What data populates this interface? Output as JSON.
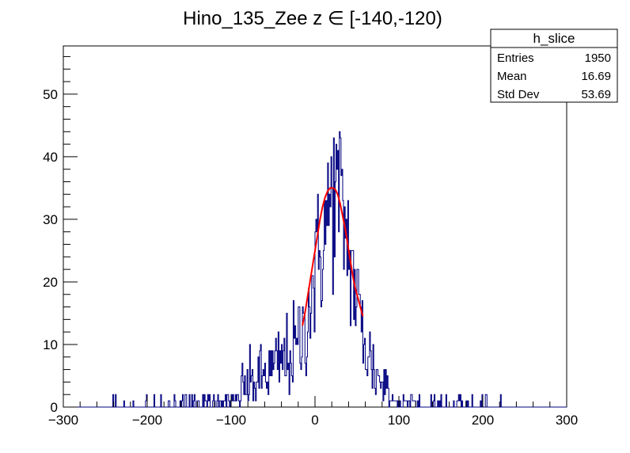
{
  "chart_data": {
    "type": "histogram",
    "title": "Hino_135_Zee z  ∈ [-140,-120)",
    "xlim": [
      -300,
      300
    ],
    "ylim": [
      0,
      57.7
    ],
    "x_ticks": [
      -300,
      -200,
      -100,
      0,
      100,
      200,
      300
    ],
    "x_tick_labels": [
      "−300",
      "−200",
      "−100",
      "0",
      "100",
      "200",
      "300"
    ],
    "y_ticks": [
      0,
      10,
      20,
      30,
      40,
      50
    ],
    "y_tick_labels": [
      "0",
      "10",
      "20",
      "30",
      "40",
      "50"
    ],
    "histogram_color": "#000080",
    "fit_color": "#ff0000",
    "bins": {
      "low": -300,
      "high": 300,
      "count": 600
    },
    "profile": {
      "comment": "approximate envelope of bin contents",
      "points": [
        [
          -300,
          0
        ],
        [
          -200,
          0.4
        ],
        [
          -150,
          1.2
        ],
        [
          -120,
          1.8
        ],
        [
          -100,
          2.6
        ],
        [
          -80,
          3.5
        ],
        [
          -60,
          5
        ],
        [
          -40,
          7
        ],
        [
          -25,
          9
        ],
        [
          -15,
          11
        ],
        [
          -5,
          18
        ],
        [
          5,
          24
        ],
        [
          15,
          30
        ],
        [
          22,
          35
        ],
        [
          30,
          33
        ],
        [
          40,
          26
        ],
        [
          50,
          17
        ],
        [
          60,
          10
        ],
        [
          70,
          6
        ],
        [
          80,
          4
        ],
        [
          95,
          2.5
        ],
        [
          120,
          1.2
        ],
        [
          150,
          0.6
        ],
        [
          200,
          0.2
        ],
        [
          300,
          0
        ]
      ]
    },
    "fit": {
      "name": "",
      "x": [
        -15,
        -12,
        -9,
        -6,
        -3,
        0,
        3,
        6,
        9,
        12,
        15,
        18,
        21,
        24,
        27,
        30,
        33,
        36,
        39,
        42,
        45,
        48,
        51,
        54,
        57
      ],
      "y": [
        13,
        15,
        17.5,
        20,
        22.5,
        25,
        27.5,
        30,
        32,
        33.5,
        34.5,
        35,
        35,
        34.8,
        34,
        32.5,
        30.5,
        28.5,
        26,
        23.5,
        21,
        19,
        17.5,
        16,
        14.5
      ]
    },
    "stats": {
      "name": "h_slice",
      "rows": [
        {
          "label": "Entries",
          "value": "1950"
        },
        {
          "label": "Mean",
          "value": "16.69"
        },
        {
          "label": "Std Dev",
          "value": "53.69"
        }
      ]
    }
  }
}
